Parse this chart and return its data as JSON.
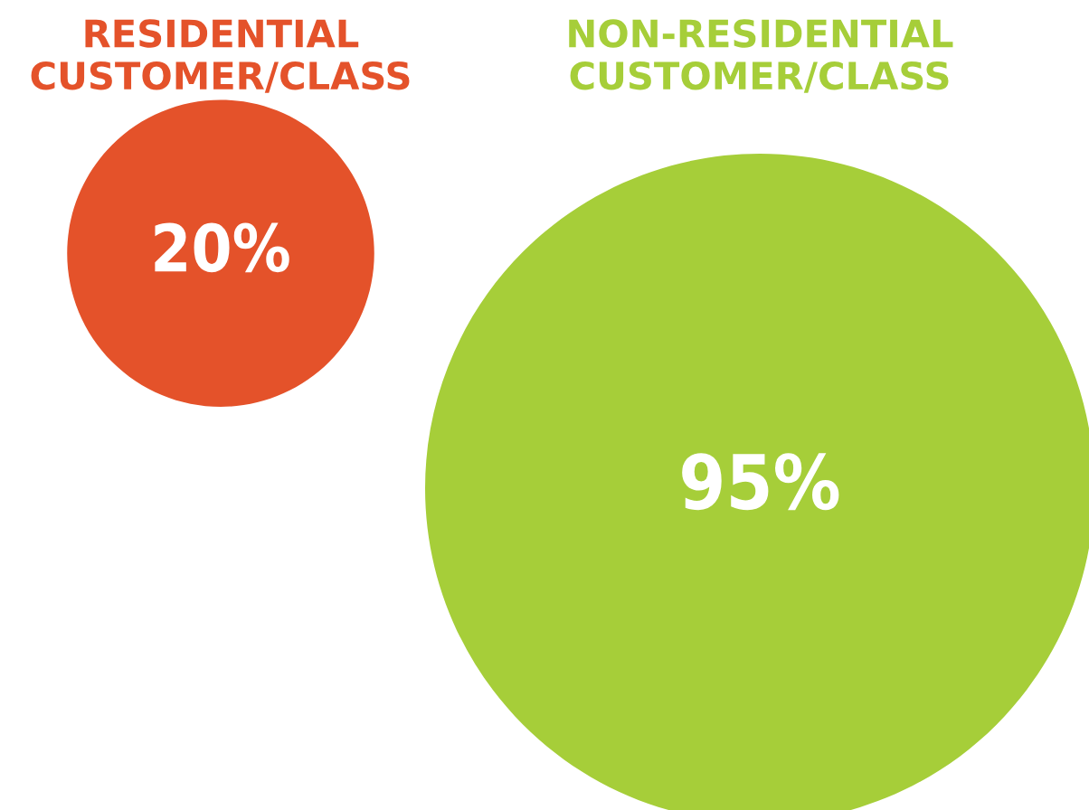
{
  "chart_data": {
    "type": "other",
    "categories": [
      "RESIDENTIAL\nCUSTOMER/CLASS",
      "NON-RESIDENTIAL\nCUSTOMER/CLASS"
    ],
    "values": [
      20,
      95
    ],
    "value_labels": [
      "20%",
      "95%"
    ],
    "colors": [
      "#e4522a",
      "#a6ce39"
    ]
  }
}
